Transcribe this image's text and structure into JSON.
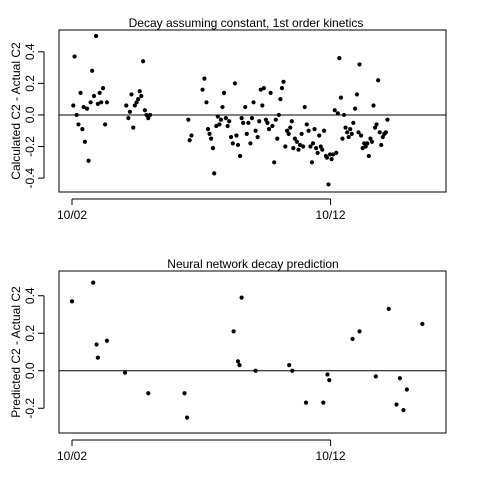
{
  "chart_data": [
    {
      "type": "scatter",
      "title": "Decay assuming constant, 1st order kinetics",
      "ylabel": "Calculated C2 - Actual C2",
      "xlabel": "",
      "x_unit": "days",
      "xlim": [
        0,
        14.0
      ],
      "ylim": [
        -0.45,
        0.5
      ],
      "x_ticks": [
        {
          "x": 0,
          "label": "10/02"
        },
        {
          "x": 10,
          "label": "10/12"
        }
      ],
      "y_ticks": [
        -0.4,
        -0.2,
        0.0,
        0.2,
        0.4
      ],
      "y_tick_labels": [
        "-0.4",
        "-0.2",
        "0.0",
        "0.2",
        "0.4"
      ],
      "reference_line_y": 0,
      "points": [
        [
          0.05,
          0.06
        ],
        [
          0.1,
          0.37
        ],
        [
          0.18,
          0.0
        ],
        [
          0.25,
          -0.06
        ],
        [
          0.33,
          0.14
        ],
        [
          0.4,
          -0.09
        ],
        [
          0.45,
          0.05
        ],
        [
          0.5,
          -0.17
        ],
        [
          0.58,
          0.04
        ],
        [
          0.64,
          -0.29
        ],
        [
          0.72,
          0.08
        ],
        [
          0.78,
          0.28
        ],
        [
          0.85,
          0.12
        ],
        [
          0.93,
          0.5
        ],
        [
          1.0,
          0.07
        ],
        [
          1.07,
          0.14
        ],
        [
          1.13,
          0.08
        ],
        [
          1.2,
          0.17
        ],
        [
          1.28,
          -0.06
        ],
        [
          1.35,
          0.08
        ],
        [
          2.1,
          0.06
        ],
        [
          2.18,
          -0.02
        ],
        [
          2.24,
          0.02
        ],
        [
          2.3,
          0.13
        ],
        [
          2.37,
          -0.08
        ],
        [
          2.43,
          0.06
        ],
        [
          2.5,
          0.08
        ],
        [
          2.56,
          0.1
        ],
        [
          2.62,
          0.15
        ],
        [
          2.68,
          0.12
        ],
        [
          2.75,
          0.34
        ],
        [
          2.82,
          0.03
        ],
        [
          2.88,
          0.0
        ],
        [
          2.95,
          -0.02
        ],
        [
          3.02,
          0.0
        ],
        [
          4.5,
          -0.03
        ],
        [
          4.55,
          -0.16
        ],
        [
          4.62,
          -0.13
        ],
        [
          5.05,
          0.16
        ],
        [
          5.12,
          0.23
        ],
        [
          5.2,
          0.08
        ],
        [
          5.26,
          -0.09
        ],
        [
          5.32,
          -0.12
        ],
        [
          5.38,
          -0.15
        ],
        [
          5.45,
          -0.21
        ],
        [
          5.5,
          -0.37
        ],
        [
          5.58,
          -0.07
        ],
        [
          5.64,
          -0.01
        ],
        [
          5.7,
          -0.06
        ],
        [
          5.76,
          -0.03
        ],
        [
          5.82,
          0.05
        ],
        [
          5.88,
          0.14
        ],
        [
          5.95,
          -0.02
        ],
        [
          6.02,
          -0.07
        ],
        [
          6.08,
          -0.04
        ],
        [
          6.15,
          -0.14
        ],
        [
          6.22,
          -0.18
        ],
        [
          6.3,
          0.2
        ],
        [
          6.36,
          -0.13
        ],
        [
          6.42,
          -0.19
        ],
        [
          6.5,
          -0.26
        ],
        [
          6.56,
          -0.02
        ],
        [
          6.62,
          -0.05
        ],
        [
          6.7,
          0.05
        ],
        [
          6.76,
          -0.12
        ],
        [
          6.82,
          -0.05
        ],
        [
          6.9,
          -0.18
        ],
        [
          6.96,
          -0.02
        ],
        [
          7.02,
          0.08
        ],
        [
          7.1,
          -0.1
        ],
        [
          7.18,
          -0.14
        ],
        [
          7.24,
          -0.04
        ],
        [
          7.3,
          0.16
        ],
        [
          7.36,
          0.06
        ],
        [
          7.42,
          0.17
        ],
        [
          7.5,
          -0.03
        ],
        [
          7.56,
          -0.05
        ],
        [
          7.62,
          -0.09
        ],
        [
          7.68,
          0.14
        ],
        [
          7.75,
          -0.07
        ],
        [
          7.82,
          -0.3
        ],
        [
          7.88,
          -0.03
        ],
        [
          7.94,
          -0.15
        ],
        [
          8.0,
          0.0
        ],
        [
          8.06,
          0.1
        ],
        [
          8.12,
          0.17
        ],
        [
          8.18,
          0.21
        ],
        [
          8.25,
          -0.2
        ],
        [
          8.32,
          -0.1
        ],
        [
          8.38,
          -0.12
        ],
        [
          8.44,
          -0.08
        ],
        [
          8.5,
          -0.04
        ],
        [
          8.56,
          -0.21
        ],
        [
          8.62,
          -0.15
        ],
        [
          8.7,
          -0.17
        ],
        [
          8.76,
          -0.22
        ],
        [
          8.82,
          -0.19
        ],
        [
          8.88,
          -0.12
        ],
        [
          8.94,
          -0.2
        ],
        [
          9.0,
          0.05
        ],
        [
          9.08,
          -0.06
        ],
        [
          9.15,
          -0.1
        ],
        [
          9.22,
          -0.2
        ],
        [
          9.28,
          -0.3
        ],
        [
          9.32,
          -0.18
        ],
        [
          9.38,
          -0.09
        ],
        [
          9.44,
          -0.21
        ],
        [
          9.5,
          -0.24
        ],
        [
          9.56,
          -0.13
        ],
        [
          9.62,
          -0.2
        ],
        [
          9.68,
          -0.22
        ],
        [
          9.75,
          -0.1
        ],
        [
          9.82,
          -0.26
        ],
        [
          9.86,
          -0.27
        ],
        [
          9.92,
          -0.44
        ],
        [
          9.98,
          -0.25
        ],
        [
          10.04,
          -0.28
        ],
        [
          10.1,
          -0.25
        ],
        [
          10.16,
          0.03
        ],
        [
          10.22,
          -0.24
        ],
        [
          10.28,
          0.01
        ],
        [
          10.34,
          0.36
        ],
        [
          10.4,
          0.11
        ],
        [
          10.46,
          -0.15
        ],
        [
          10.52,
          0.0
        ],
        [
          10.58,
          -0.08
        ],
        [
          10.64,
          -0.11
        ],
        [
          10.7,
          -0.14
        ],
        [
          10.76,
          -0.09
        ],
        [
          10.82,
          -0.12
        ],
        [
          10.88,
          -0.05
        ],
        [
          10.95,
          0.04
        ],
        [
          11.02,
          0.13
        ],
        [
          11.08,
          -0.11
        ],
        [
          11.12,
          0.32
        ],
        [
          11.18,
          -0.13
        ],
        [
          11.24,
          -0.21
        ],
        [
          11.3,
          -0.18
        ],
        [
          11.36,
          -0.2
        ],
        [
          11.42,
          -0.18
        ],
        [
          11.48,
          -0.26
        ],
        [
          11.54,
          -0.15
        ],
        [
          11.6,
          -0.17
        ],
        [
          11.66,
          0.06
        ],
        [
          11.72,
          -0.08
        ],
        [
          11.78,
          -0.06
        ],
        [
          11.84,
          0.22
        ],
        [
          11.9,
          -0.11
        ],
        [
          11.96,
          -0.19
        ],
        [
          12.02,
          -0.14
        ],
        [
          12.08,
          -0.12
        ],
        [
          12.14,
          -0.11
        ],
        [
          12.2,
          -0.03
        ]
      ]
    },
    {
      "type": "scatter",
      "title": "Neural network decay prediction",
      "ylabel": "Predicted C2 - Actual C2",
      "xlabel": "",
      "x_unit": "days",
      "xlim": [
        0,
        14.0
      ],
      "ylim": [
        -0.3,
        0.5
      ],
      "x_ticks": [
        {
          "x": 0,
          "label": "10/02"
        },
        {
          "x": 10,
          "label": "10/12"
        }
      ],
      "y_ticks": [
        -0.2,
        0.0,
        0.2,
        0.4
      ],
      "y_tick_labels": [
        "-0.2",
        "0.0",
        "0.2",
        "0.4"
      ],
      "reference_line_y": 0,
      "points": [
        [
          0.0,
          0.37
        ],
        [
          0.82,
          0.47
        ],
        [
          0.95,
          0.14
        ],
        [
          1.0,
          0.07
        ],
        [
          1.35,
          0.16
        ],
        [
          2.05,
          -0.01
        ],
        [
          2.95,
          -0.12
        ],
        [
          4.35,
          -0.12
        ],
        [
          4.45,
          -0.25
        ],
        [
          6.25,
          0.21
        ],
        [
          6.42,
          0.05
        ],
        [
          6.48,
          0.03
        ],
        [
          6.56,
          0.39
        ],
        [
          7.1,
          0.0
        ],
        [
          8.4,
          0.03
        ],
        [
          8.52,
          0.0
        ],
        [
          9.05,
          -0.17
        ],
        [
          9.72,
          -0.17
        ],
        [
          9.88,
          -0.02
        ],
        [
          9.95,
          -0.05
        ],
        [
          10.85,
          0.17
        ],
        [
          11.12,
          0.21
        ],
        [
          11.75,
          -0.03
        ],
        [
          12.25,
          0.33
        ],
        [
          12.55,
          -0.18
        ],
        [
          12.68,
          -0.04
        ],
        [
          12.82,
          -0.21
        ],
        [
          12.95,
          -0.1
        ],
        [
          13.55,
          0.25
        ]
      ]
    }
  ]
}
